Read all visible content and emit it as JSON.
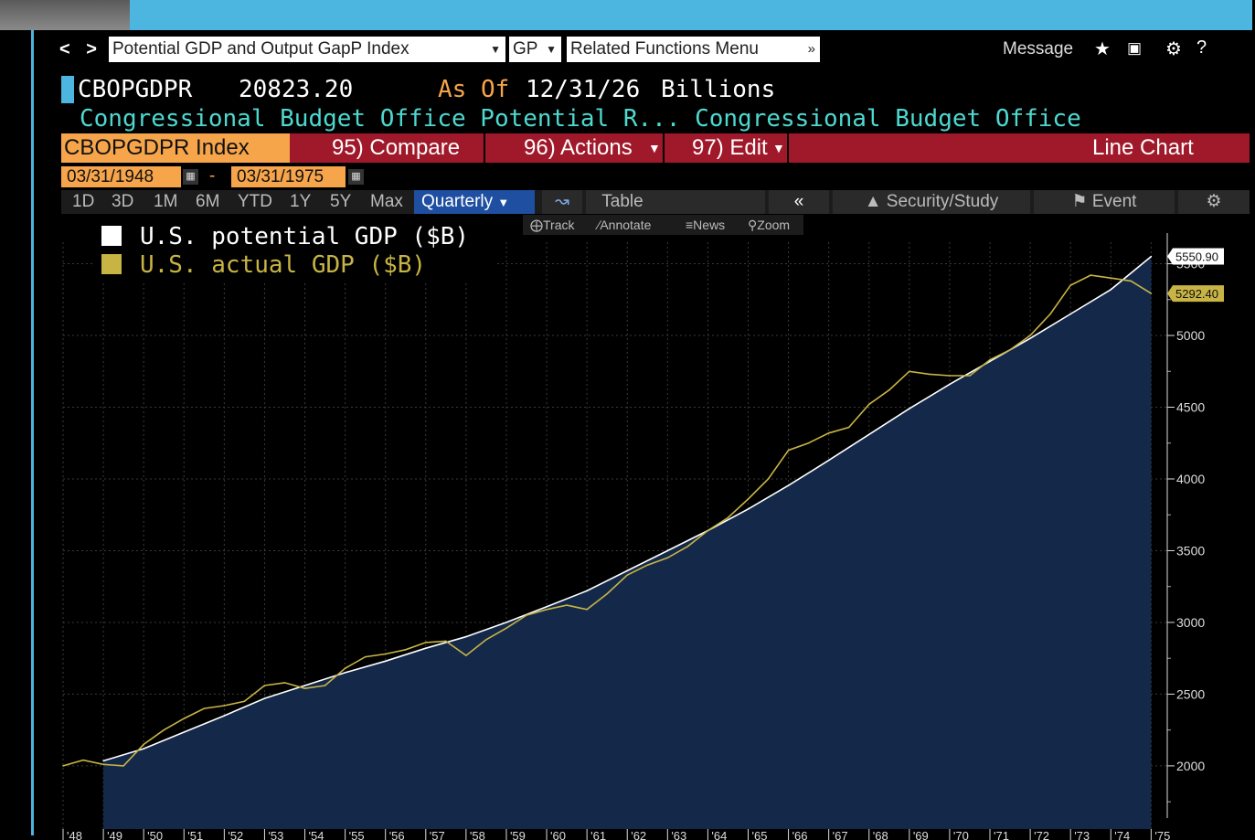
{
  "toolbar": {
    "nav": "< >",
    "function_dropdown": "Potential GDP and Output GapP Index",
    "gp_dropdown": "GP",
    "related_functions": "Related Functions  Menu",
    "message": "Message",
    "icons": [
      "star-icon",
      "window-icon",
      "gear-icon",
      "help-icon"
    ]
  },
  "security": {
    "ticker": "CBOPGDPR",
    "value": "20823.20",
    "as_of_label": "As Of",
    "as_of_date": "12/31/26",
    "units": "Billions",
    "description": "Congressional Budget Office Potential R... Congressional Budget Office"
  },
  "actionbar": {
    "ticker_index": "CBOPGDPR Index",
    "compare": "95) Compare",
    "actions": "96) Actions",
    "edit": "97) Edit",
    "chart_type": "Line Chart"
  },
  "dates": {
    "start": "03/31/1948",
    "end": "03/31/1975",
    "sep": "-"
  },
  "ranges": [
    "1D",
    "3D",
    "1M",
    "6M",
    "YTD",
    "1Y",
    "5Y",
    "Max"
  ],
  "range_toolbar": {
    "frequency": "Quarterly",
    "table": "Table",
    "collapse": "«",
    "security_study": "Security/Study",
    "event": "Event"
  },
  "subtools": {
    "track": "Track",
    "annotate": "Annotate",
    "news": "News",
    "zoom": "Zoom"
  },
  "colors": {
    "potential": "#ffffff",
    "actual": "#c8b444",
    "area": "#14294a",
    "accent": "#f7a54b",
    "bar": "#a0192a"
  },
  "chart_data": {
    "type": "line",
    "series": [
      {
        "name": "U.S. potential GDP ($B)",
        "x": [
          1949.0,
          1950.0,
          1951.0,
          1952.0,
          1953.0,
          1954.0,
          1955.0,
          1956.0,
          1957.0,
          1958.0,
          1959.0,
          1960.0,
          1961.0,
          1962.0,
          1963.0,
          1964.0,
          1965.0,
          1966.0,
          1967.0,
          1968.0,
          1969.0,
          1970.0,
          1971.0,
          1972.0,
          1973.0,
          1974.0,
          1975.0
        ],
        "values": [
          2035,
          2120,
          2235,
          2350,
          2470,
          2560,
          2650,
          2730,
          2820,
          2900,
          3000,
          3110,
          3220,
          3360,
          3500,
          3640,
          3790,
          3955,
          4130,
          4310,
          4490,
          4660,
          4820,
          4980,
          5150,
          5320,
          5550.9
        ]
      },
      {
        "name": "U.S. actual GDP ($B)",
        "x": [
          1948.0,
          1948.5,
          1949.0,
          1949.5,
          1950.0,
          1950.5,
          1951.0,
          1951.5,
          1952.0,
          1952.5,
          1953.0,
          1953.5,
          1954.0,
          1954.5,
          1955.0,
          1955.5,
          1956.0,
          1956.5,
          1957.0,
          1957.5,
          1958.0,
          1958.5,
          1959.0,
          1959.5,
          1960.0,
          1960.5,
          1961.0,
          1961.5,
          1962.0,
          1962.5,
          1963.0,
          1963.5,
          1964.0,
          1964.5,
          1965.0,
          1965.5,
          1966.0,
          1966.5,
          1967.0,
          1967.5,
          1968.0,
          1968.5,
          1969.0,
          1969.5,
          1970.0,
          1970.5,
          1971.0,
          1971.5,
          1972.0,
          1972.5,
          1973.0,
          1973.5,
          1974.0,
          1974.5,
          1975.0
        ],
        "values": [
          2000,
          2040,
          2010,
          2000,
          2150,
          2250,
          2330,
          2400,
          2420,
          2450,
          2560,
          2580,
          2540,
          2560,
          2680,
          2760,
          2780,
          2810,
          2860,
          2870,
          2770,
          2880,
          2960,
          3050,
          3090,
          3120,
          3090,
          3200,
          3330,
          3400,
          3450,
          3530,
          3640,
          3730,
          3860,
          4000,
          4200,
          4250,
          4320,
          4360,
          4520,
          4620,
          4750,
          4730,
          4720,
          4720,
          4830,
          4900,
          5000,
          5150,
          5350,
          5420,
          5400,
          5380,
          5292.4
        ]
      }
    ],
    "x_ticks": [
      "'48",
      "'49",
      "'50",
      "'51",
      "'52",
      "'53",
      "'54",
      "'55",
      "'56",
      "'57",
      "'58",
      "'59",
      "'60",
      "'61",
      "'62",
      "'63",
      "'64",
      "'65",
      "'66",
      "'67",
      "'68",
      "'69",
      "'70",
      "'71",
      "'72",
      "'73",
      "'74",
      "'75"
    ],
    "y_ticks": [
      "2000",
      "2500",
      "3000",
      "3500",
      "4000",
      "4500",
      "5000",
      "5500"
    ],
    "last_values": [
      "5550.90",
      "5292.40"
    ],
    "xlim": [
      1948.0,
      1975.4
    ],
    "ylim": [
      1700,
      5650
    ],
    "grid": true,
    "legend": "top-left"
  }
}
